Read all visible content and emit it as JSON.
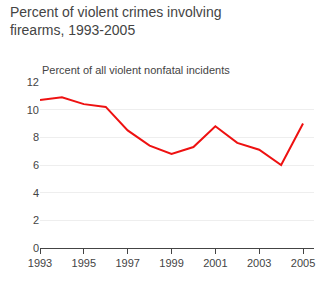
{
  "chart_data": {
    "type": "line",
    "title": "Percent of violent crimes involving\nfirearms, 1993-2005",
    "ylabel": "Percent of all violent nonfatal incidents",
    "x": [
      1993,
      1994,
      1995,
      1996,
      1997,
      1998,
      1999,
      2000,
      2001,
      2002,
      2003,
      2004,
      2005
    ],
    "values": [
      10.7,
      10.9,
      10.4,
      10.2,
      8.5,
      7.4,
      6.8,
      7.3,
      8.8,
      7.6,
      7.1,
      6.0,
      9.0
    ],
    "color": "#ee1111",
    "xlim": [
      1993,
      2005.5
    ],
    "xticks": [
      1993,
      1995,
      1997,
      1999,
      2001,
      2003,
      2005
    ],
    "ylim": [
      0,
      12
    ],
    "yticks": [
      0,
      2,
      4,
      6,
      8,
      10,
      12
    ],
    "grid": "y"
  }
}
